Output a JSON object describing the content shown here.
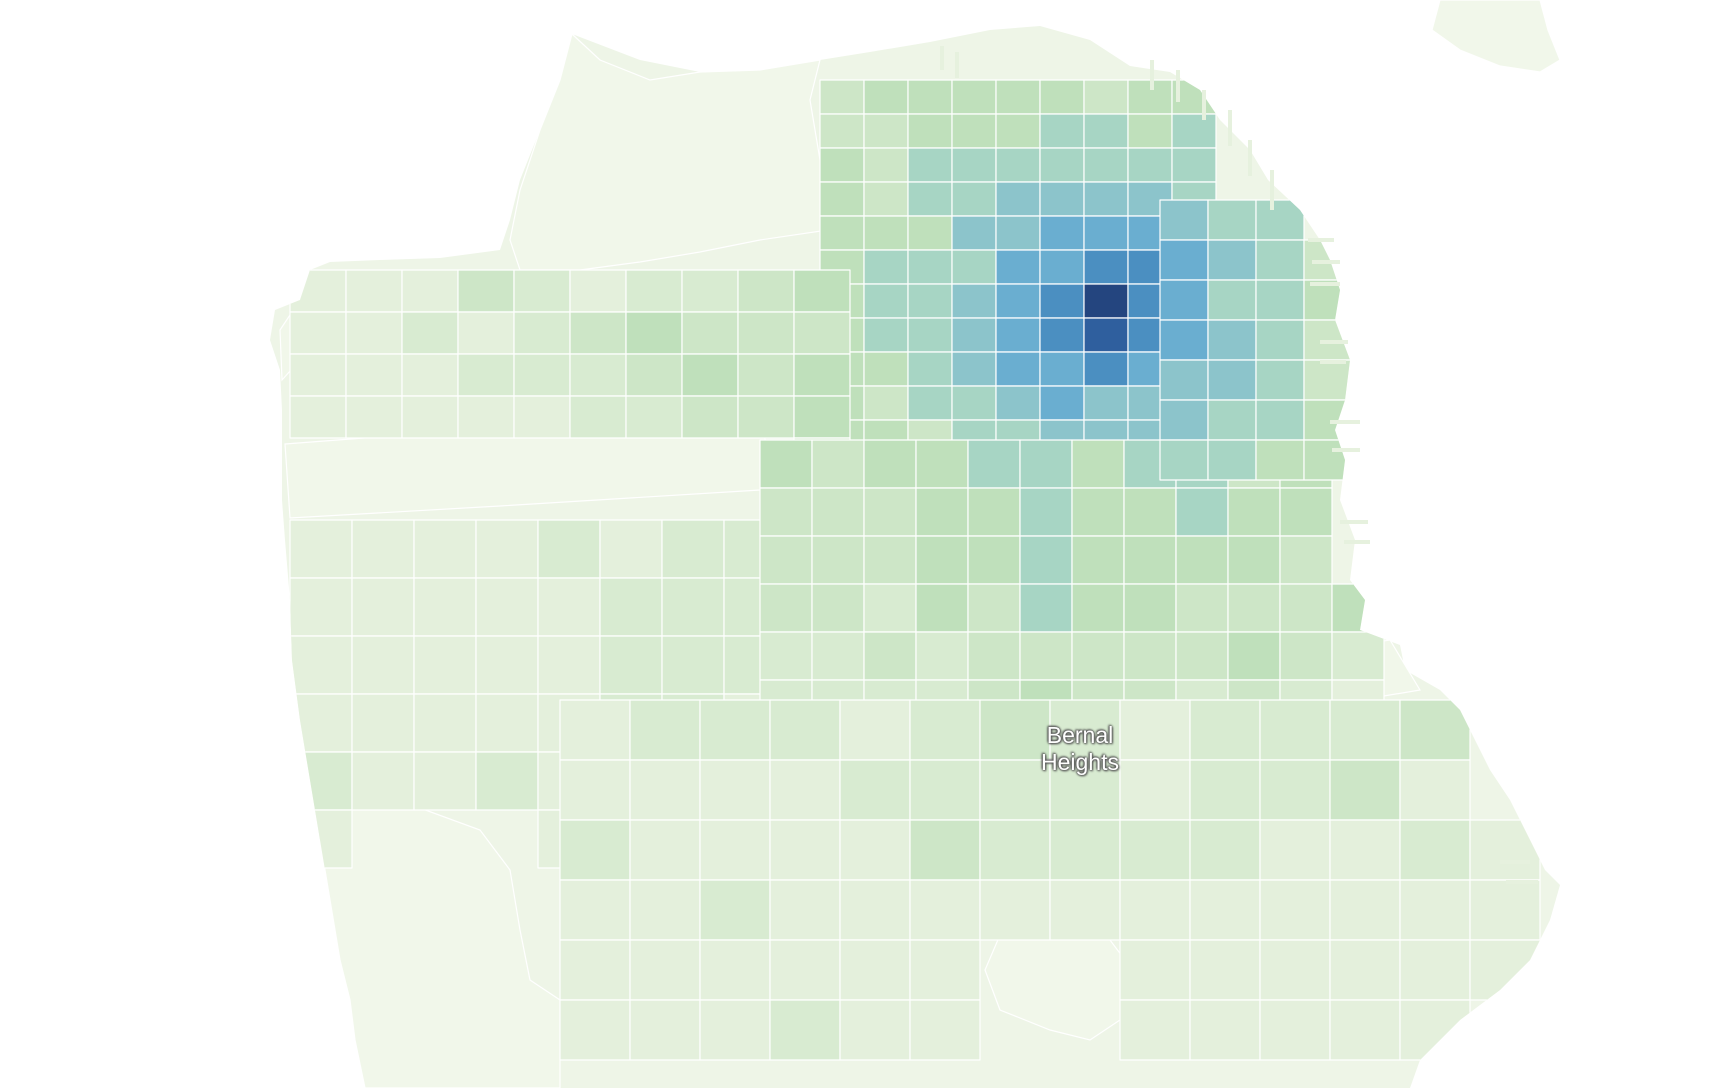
{
  "map": {
    "neighborhood_label": {
      "line1": "Bernal",
      "line2": "Heights"
    },
    "colors": {
      "land": "#eef5e7",
      "park": "#f1f7ea",
      "block_border": "#ffffff",
      "scale": [
        "#eef6e6",
        "#e4f0dc",
        "#d8ebd1",
        "#cde6c7",
        "#bfe0bb",
        "#a7d5c4",
        "#8cc4cb",
        "#6aaed0",
        "#4b8fc1",
        "#2f5f9e",
        "#24457f"
      ]
    }
  }
}
